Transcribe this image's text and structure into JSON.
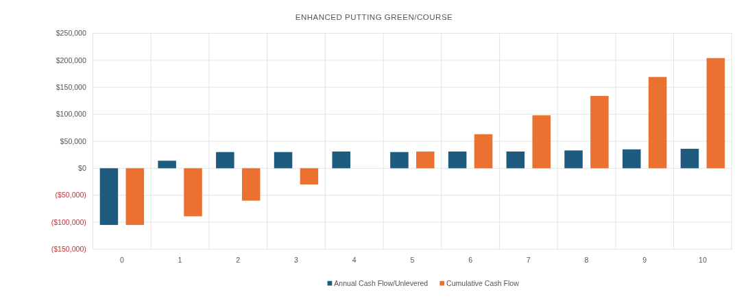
{
  "chart_data": {
    "type": "bar",
    "title": "ENHANCED PUTTING GREEN/COURSE",
    "categories": [
      "0",
      "1",
      "2",
      "3",
      "4",
      "5",
      "6",
      "7",
      "8",
      "9",
      "10"
    ],
    "series": [
      {
        "name": "Annual Cash Flow/Unlevered",
        "color": "#1f5a7f",
        "values": [
          -105000,
          14000,
          30000,
          30000,
          31000,
          30000,
          31000,
          31000,
          33000,
          35000,
          36000
        ]
      },
      {
        "name": "Cumulative Cash Flow",
        "color": "#ea7130",
        "values": [
          -105000,
          -89000,
          -60000,
          -30000,
          null,
          31000,
          63000,
          98000,
          134000,
          169000,
          204000
        ]
      }
    ],
    "ylim": [
      -150000,
      250000
    ],
    "yticks": [
      {
        "value": -150000,
        "label": "($150,000)"
      },
      {
        "value": -100000,
        "label": "($100,000)"
      },
      {
        "value": -50000,
        "label": "($50,000)"
      },
      {
        "value": 0,
        "label": "$0"
      },
      {
        "value": 50000,
        "label": "$50,000"
      },
      {
        "value": 100000,
        "label": "$100,000"
      },
      {
        "value": 150000,
        "label": "$150,000"
      },
      {
        "value": 200000,
        "label": "$200,000"
      },
      {
        "value": 250000,
        "label": "$250,000"
      }
    ],
    "grid": true,
    "legend": "bottom"
  }
}
